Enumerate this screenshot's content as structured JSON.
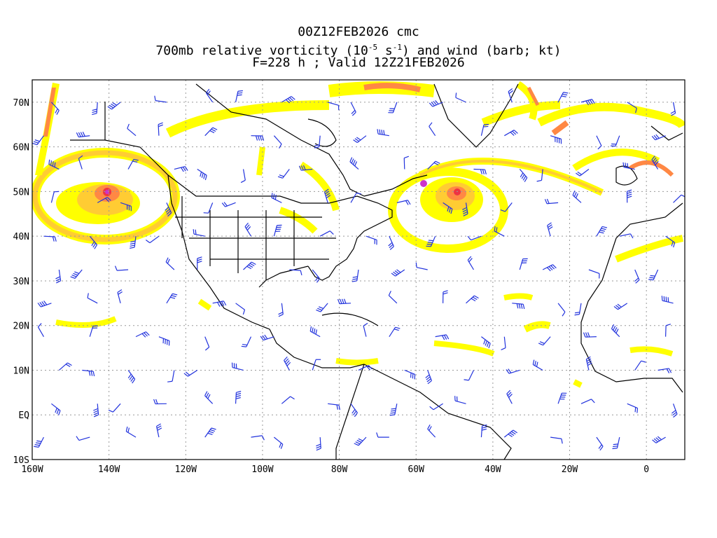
{
  "header": {
    "line1": "00Z12FEB2026 cmc",
    "line2_pre": "700mb relative vorticity (10",
    "line2_exp1": "-5",
    "line2_mid": " s",
    "line2_exp2": "-1",
    "line2_post": ") and wind (barb; kt)",
    "line3": "F=228 h ; Valid 12Z21FEB2026"
  },
  "axes": {
    "lon_labels": [
      "160W",
      "140W",
      "120W",
      "100W",
      "80W",
      "60W",
      "40W",
      "20W",
      "0"
    ],
    "lon_values": [
      -160,
      -140,
      -120,
      -100,
      -80,
      -60,
      -40,
      -20,
      0
    ],
    "lat_labels": [
      "70N",
      "60N",
      "50N",
      "40N",
      "30N",
      "20N",
      "10N",
      "EQ",
      "10S"
    ],
    "lat_values": [
      70,
      60,
      50,
      40,
      30,
      20,
      10,
      0,
      -10
    ],
    "lon_range": [
      -160,
      10
    ],
    "lat_range": [
      -10,
      75
    ],
    "grid": true
  },
  "colors": {
    "vort_low": "#ffff00",
    "vort_mid": "#ffcc33",
    "vort_high": "#ff8844",
    "vort_max": "#ee3344",
    "vort_core": "#cc33cc",
    "barb": "#2233dd",
    "coast": "#000000"
  }
}
